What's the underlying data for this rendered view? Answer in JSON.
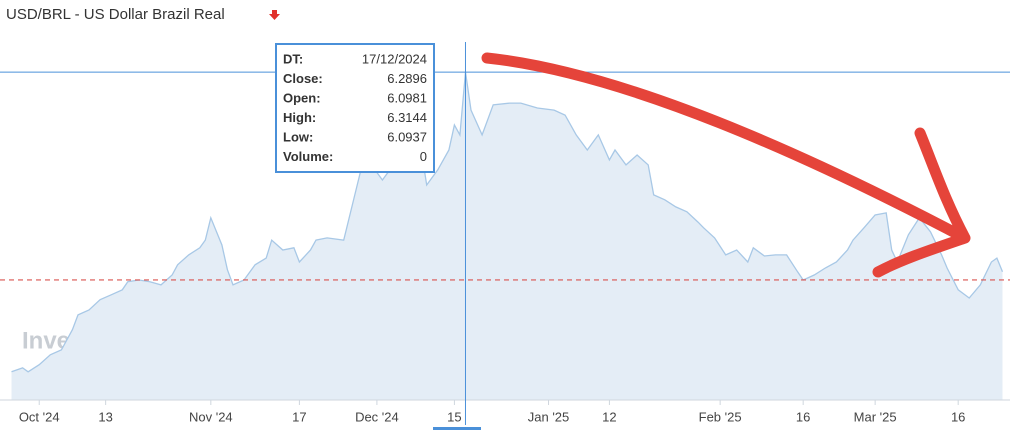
{
  "chart_data": {
    "type": "area",
    "title": "USD/BRL - US Dollar Brazil Real",
    "watermark": "Investing.com",
    "color": "#a8c8e6",
    "fill": "#e4edf6",
    "xlim": [
      "2024-09-25",
      "2025-03-25"
    ],
    "ylim": [
      5.361,
      6.375
    ],
    "xticks": [
      {
        "value": "2024-10-01",
        "label": "Oct '24"
      },
      {
        "value": "2024-10-13",
        "label": "13"
      },
      {
        "value": "2024-11-01",
        "label": "Nov '24"
      },
      {
        "value": "2024-11-17",
        "label": "17"
      },
      {
        "value": "2024-12-01",
        "label": "Dec '24"
      },
      {
        "value": "2024-12-15",
        "label": "15"
      },
      {
        "value": "2025-01-01",
        "label": "Jan '25"
      },
      {
        "value": "2025-01-12",
        "label": "12"
      },
      {
        "value": "2025-02-01",
        "label": "Feb '25"
      },
      {
        "value": "2025-02-16",
        "label": "16"
      },
      {
        "value": "2025-03-01",
        "label": "Mar '25"
      },
      {
        "value": "2025-03-16",
        "label": "16"
      }
    ],
    "reference_line": 5.701,
    "x": [
      "2024-09-26",
      "2024-09-28",
      "2024-09-29",
      "2024-10-01",
      "2024-10-03",
      "2024-10-05",
      "2024-10-07",
      "2024-10-08",
      "2024-10-10",
      "2024-10-12",
      "2024-10-14",
      "2024-10-16",
      "2024-10-17",
      "2024-10-19",
      "2024-10-21",
      "2024-10-23",
      "2024-10-25",
      "2024-10-26",
      "2024-10-28",
      "2024-10-30",
      "2024-10-31",
      "2024-11-01",
      "2024-11-03",
      "2024-11-04",
      "2024-11-05",
      "2024-11-07",
      "2024-11-09",
      "2024-11-11",
      "2024-11-12",
      "2024-11-14",
      "2024-11-16",
      "2024-11-17",
      "2024-11-19",
      "2024-11-20",
      "2024-11-22",
      "2024-11-25",
      "2024-11-27",
      "2024-11-29",
      "2024-11-30",
      "2024-12-02",
      "2024-12-04",
      "2024-12-06",
      "2024-12-08",
      "2024-12-09",
      "2024-12-10",
      "2024-12-12",
      "2024-12-14",
      "2024-12-15",
      "2024-12-16",
      "2024-12-17",
      "2024-12-18",
      "2024-12-20",
      "2024-12-22",
      "2024-12-25",
      "2024-12-27",
      "2024-12-30",
      "2025-01-02",
      "2025-01-04",
      "2025-01-06",
      "2025-01-08",
      "2025-01-10",
      "2025-01-12",
      "2025-01-13",
      "2025-01-15",
      "2025-01-17",
      "2025-01-19",
      "2025-01-20",
      "2025-01-22",
      "2025-01-24",
      "2025-01-26",
      "2025-01-28",
      "2025-01-29",
      "2025-01-31",
      "2025-02-02",
      "2025-02-04",
      "2025-02-06",
      "2025-02-07",
      "2025-02-09",
      "2025-02-11",
      "2025-02-13",
      "2025-02-15",
      "2025-02-16",
      "2025-02-18",
      "2025-02-20",
      "2025-02-22",
      "2025-02-24",
      "2025-02-25",
      "2025-02-27",
      "2025-03-01",
      "2025-03-03",
      "2025-03-04",
      "2025-03-05",
      "2025-03-07",
      "2025-03-09",
      "2025-03-11",
      "2025-03-13",
      "2025-03-14",
      "2025-03-16",
      "2025-03-18",
      "2025-03-20",
      "2025-03-22",
      "2025-03-23",
      "2025-03-24"
    ],
    "values": [
      5.441,
      5.452,
      5.441,
      5.461,
      5.489,
      5.503,
      5.56,
      5.602,
      5.616,
      5.645,
      5.659,
      5.673,
      5.696,
      5.701,
      5.696,
      5.687,
      5.715,
      5.744,
      5.772,
      5.792,
      5.814,
      5.877,
      5.8,
      5.73,
      5.687,
      5.701,
      5.744,
      5.763,
      5.814,
      5.786,
      5.792,
      5.752,
      5.786,
      5.814,
      5.82,
      5.814,
      5.942,
      6.069,
      6.027,
      5.984,
      6.027,
      6.069,
      6.041,
      6.069,
      5.97,
      6.013,
      6.069,
      6.14,
      6.112,
      6.2896,
      6.182,
      6.112,
      6.197,
      6.202,
      6.202,
      6.188,
      6.182,
      6.168,
      6.112,
      6.069,
      6.112,
      6.041,
      6.069,
      6.027,
      6.055,
      6.027,
      5.942,
      5.928,
      5.908,
      5.894,
      5.865,
      5.849,
      5.82,
      5.772,
      5.786,
      5.752,
      5.792,
      5.769,
      5.772,
      5.772,
      5.724,
      5.701,
      5.715,
      5.735,
      5.752,
      5.786,
      5.814,
      5.849,
      5.885,
      5.891,
      5.786,
      5.752,
      5.829,
      5.877,
      5.837,
      5.772,
      5.735,
      5.673,
      5.65,
      5.687,
      5.752,
      5.763,
      5.724
    ],
    "tooltip": {
      "labels": [
        "DT:",
        "Close:",
        "Open:",
        "High:",
        "Low:",
        "Volume:"
      ],
      "values": [
        "17/12/2024",
        6.2896,
        6.0981,
        6.3144,
        6.0937,
        0
      ]
    }
  }
}
